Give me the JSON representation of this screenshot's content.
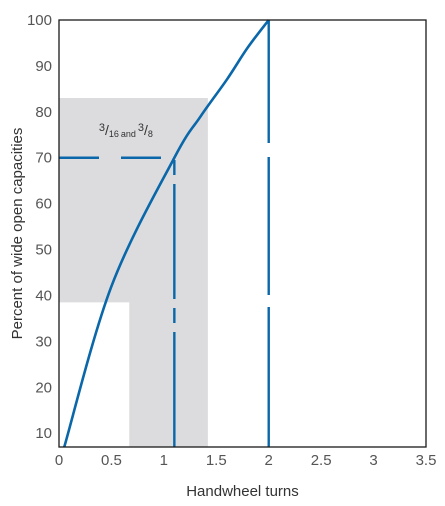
{
  "chart_data": {
    "type": "line",
    "title": "",
    "xlabel": "Handwheel turns",
    "ylabel": "Percent of wide open capacities",
    "xlim": [
      0,
      3.5
    ],
    "ylim": [
      7,
      100
    ],
    "x_ticks": [
      {
        "value": 0,
        "label": "0"
      },
      {
        "value": 0.5,
        "label": "0.5"
      },
      {
        "value": 1,
        "label": "1"
      },
      {
        "value": 1.5,
        "label": "1.5"
      },
      {
        "value": 2,
        "label": "2"
      },
      {
        "value": 2.5,
        "label": "2.5"
      },
      {
        "value": 3,
        "label": "3"
      },
      {
        "value": 3.5,
        "label": "3.5"
      }
    ],
    "y_ticks": [
      {
        "value": 10,
        "label": "10"
      },
      {
        "value": 20,
        "label": "20"
      },
      {
        "value": 30,
        "label": "30"
      },
      {
        "value": 40,
        "label": "40"
      },
      {
        "value": 50,
        "label": "50"
      },
      {
        "value": 60,
        "label": "60"
      },
      {
        "value": 70,
        "label": "70"
      },
      {
        "value": 80,
        "label": "80"
      },
      {
        "value": 90,
        "label": "90"
      },
      {
        "value": 100,
        "label": "100"
      }
    ],
    "grid": false,
    "series": [
      {
        "x": [
          0.05,
          0.5,
          1.1,
          1.35,
          1.6,
          1.8,
          2.0
        ],
        "y": [
          7,
          42,
          70,
          79,
          87,
          94,
          100
        ]
      }
    ],
    "shaded_region": {
      "x": [
        0,
        1.42
      ],
      "y": [
        7,
        83
      ],
      "cutout": {
        "x": [
          0,
          0.67
        ],
        "y": [
          7,
          38.5
        ]
      }
    },
    "reference_lines": [
      {
        "type": "horizontal",
        "y": 70,
        "x_from": 0,
        "x_to": 1.1,
        "style": "dashed"
      },
      {
        "type": "vertical",
        "x": 1.1,
        "y_from": 7,
        "y_to": 70,
        "style": "dashed"
      },
      {
        "type": "vertical",
        "x": 2.0,
        "y_from": 7,
        "y_to": 100,
        "style": "dashed"
      }
    ],
    "annotation": {
      "x": 0.85,
      "y": 75,
      "num1": "3",
      "den1": "16",
      "connector": "and",
      "num2": "3",
      "den2": "8"
    },
    "colors": {
      "line": "#0a67a9",
      "shade": "#dcdcde",
      "axis": "#1a1a1a",
      "text": "#555555"
    }
  }
}
